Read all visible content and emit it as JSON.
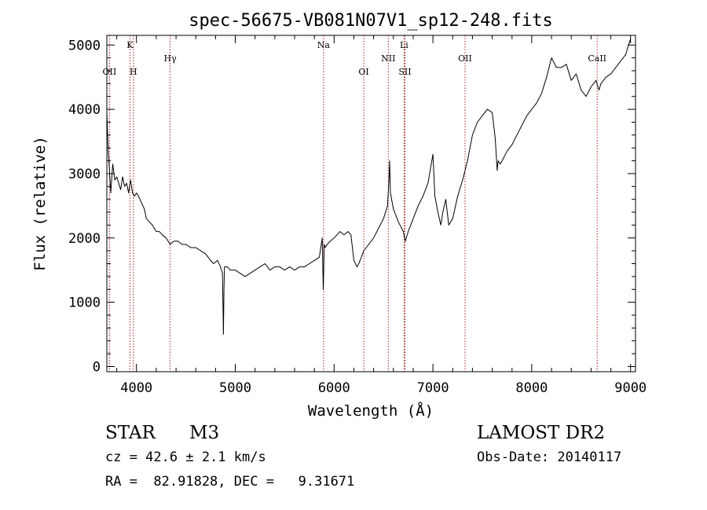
{
  "chart_data": {
    "type": "line",
    "title": "spec-56675-VB081N07V1_sp12-248.fits",
    "xlabel": "Wavelength (Å)",
    "ylabel": "Flux (relative)",
    "xlim": [
      3700,
      9050
    ],
    "ylim": [
      -80,
      5150
    ],
    "xticks": [
      4000,
      5000,
      6000,
      7000,
      8000,
      9000
    ],
    "yticks": [
      0,
      1000,
      2000,
      3000,
      4000,
      5000
    ],
    "grid": false,
    "line_color": "#000000",
    "marker_color": "#aa2222",
    "markers": [
      {
        "label": "OII",
        "x": 3727,
        "row": 2
      },
      {
        "label": "K",
        "x": 3934,
        "row": 0
      },
      {
        "label": "H",
        "x": 3969,
        "row": 2
      },
      {
        "label": "Hγ",
        "x": 4341,
        "row": 1
      },
      {
        "label": "Na",
        "x": 5893,
        "row": 0
      },
      {
        "label": "OI",
        "x": 6300,
        "row": 2
      },
      {
        "label": "NII",
        "x": 6548,
        "row": 1
      },
      {
        "label": "Li",
        "x": 6708,
        "row": 0
      },
      {
        "label": "SII",
        "x": 6717,
        "row": 2
      },
      {
        "label": "OII",
        "x": 7325,
        "row": 1
      },
      {
        "label": "CaII",
        "x": 8662,
        "row": 1
      }
    ],
    "series": [
      {
        "x": [
          3700,
          3715,
          3725,
          3740,
          3760,
          3780,
          3800,
          3820,
          3840,
          3860,
          3880,
          3900,
          3920,
          3940,
          3960,
          3980,
          4000,
          4020,
          4050,
          4080,
          4100,
          4130,
          4160,
          4200,
          4230,
          4260,
          4300,
          4340,
          4380,
          4420,
          4460,
          4500,
          4550,
          4600,
          4650,
          4700,
          4750,
          4780,
          4820,
          4850,
          4870,
          4880,
          4885,
          4890,
          4900,
          4920,
          4950,
          5000,
          5050,
          5100,
          5150,
          5200,
          5250,
          5300,
          5350,
          5400,
          5450,
          5500,
          5550,
          5600,
          5650,
          5700,
          5750,
          5800,
          5850,
          5880,
          5890,
          5895,
          5900,
          5910,
          5930,
          5960,
          6000,
          6030,
          6060,
          6100,
          6140,
          6170,
          6200,
          6230,
          6250,
          6300,
          6350,
          6400,
          6450,
          6500,
          6540,
          6555,
          6562,
          6570,
          6600,
          6650,
          6700,
          6720,
          6750,
          6800,
          6850,
          6900,
          6950,
          7000,
          7020,
          7050,
          7080,
          7100,
          7130,
          7160,
          7200,
          7250,
          7300,
          7350,
          7400,
          7450,
          7500,
          7550,
          7600,
          7630,
          7650,
          7660,
          7680,
          7700,
          7750,
          7800,
          7850,
          7900,
          7950,
          8000,
          8050,
          8100,
          8150,
          8200,
          8250,
          8300,
          8350,
          8400,
          8450,
          8500,
          8550,
          8600,
          8650,
          8680,
          8700,
          8750,
          8800,
          8850,
          8900,
          8950,
          8980,
          9000
        ],
        "y": [
          3950,
          3300,
          3100,
          2700,
          3150,
          2900,
          2950,
          2850,
          2750,
          2950,
          2800,
          2850,
          2700,
          2900,
          2700,
          2650,
          2700,
          2650,
          2550,
          2450,
          2300,
          2250,
          2200,
          2100,
          2100,
          2050,
          2000,
          1900,
          1950,
          1950,
          1900,
          1900,
          1850,
          1850,
          1800,
          1750,
          1650,
          1600,
          1650,
          1550,
          1450,
          500,
          1200,
          1550,
          1550,
          1550,
          1500,
          1500,
          1450,
          1400,
          1450,
          1500,
          1550,
          1600,
          1500,
          1550,
          1550,
          1500,
          1550,
          1500,
          1550,
          1550,
          1600,
          1650,
          1700,
          2000,
          1200,
          1500,
          1900,
          1850,
          1900,
          1950,
          2000,
          2050,
          2100,
          2050,
          2100,
          2050,
          1650,
          1550,
          1600,
          1800,
          1900,
          2000,
          2150,
          2300,
          2500,
          2900,
          3200,
          2700,
          2450,
          2250,
          2100,
          1950,
          2100,
          2300,
          2500,
          2650,
          2850,
          3300,
          2650,
          2400,
          2200,
          2400,
          2600,
          2200,
          2300,
          2650,
          2900,
          3200,
          3600,
          3800,
          3900,
          4000,
          3950,
          3550,
          3050,
          3200,
          3150,
          3200,
          3350,
          3450,
          3600,
          3750,
          3900,
          4000,
          4100,
          4250,
          4500,
          4800,
          4650,
          4650,
          4700,
          4450,
          4550,
          4300,
          4200,
          4350,
          4450,
          4300,
          4400,
          4500,
          4550,
          4650,
          4750,
          4850,
          5000,
          5100
        ]
      }
    ]
  },
  "info": {
    "object_class": "STAR",
    "subclass": "M3",
    "survey": "LAMOST DR2",
    "velocity": "cz = 42.6 ± 2.1 km/s",
    "obs_date": "Obs-Date: 20140117",
    "coords": "RA =  82.91828, DEC =   9.31671"
  }
}
